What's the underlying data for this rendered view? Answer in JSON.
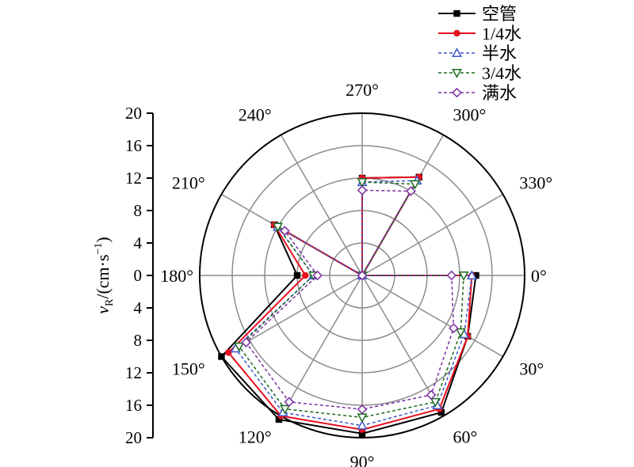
{
  "chart_data": {
    "type": "line",
    "subtype": "polar-radar",
    "ylabel_main": "v",
    "ylabel_sub": "R",
    "ylabel_unit_pre": "/(cm·s",
    "ylabel_unit_sup": "−1",
    "ylabel_unit_post": ")",
    "rlim": [
      0,
      20
    ],
    "r_ticks": [
      "0",
      "4",
      "8",
      "12",
      "16",
      "20"
    ],
    "r_axis_labels": [
      "20",
      "16",
      "12",
      "8",
      "4",
      "0",
      "4",
      "8",
      "12",
      "16",
      "20"
    ],
    "angle_labels": [
      "0°",
      "30°",
      "60°",
      "90°",
      "120°",
      "150°",
      "180°",
      "210°",
      "240°",
      "270°",
      "300°",
      "330°"
    ],
    "angles_deg": [
      0,
      30,
      60,
      90,
      120,
      150,
      180,
      210,
      240,
      270,
      300,
      330
    ],
    "grid": true,
    "legend_position": "top-right",
    "series": [
      {
        "name": "空管",
        "color": "#000000",
        "marker": "square",
        "dash": "solid",
        "values": [
          14.0,
          15.0,
          19.5,
          19.5,
          20.5,
          20.0,
          8.0,
          12.5,
          0,
          12.0,
          14.0,
          0
        ]
      },
      {
        "name": "1/4水",
        "color": "#e8101e",
        "marker": "circle",
        "dash": "solid",
        "values": [
          13.5,
          15.0,
          19.0,
          19.0,
          20.0,
          19.0,
          7.0,
          12.5,
          0,
          12.0,
          14.0,
          0
        ]
      },
      {
        "name": "半水",
        "color": "#3d57c8",
        "marker": "triangle-up",
        "dash": "dashed",
        "values": [
          13.5,
          14.5,
          18.5,
          18.5,
          19.5,
          18.0,
          6.0,
          12.0,
          0,
          11.5,
          13.5,
          0
        ]
      },
      {
        "name": "3/4水",
        "color": "#1e6b1e",
        "marker": "triangle-down",
        "dash": "dashed",
        "values": [
          12.5,
          14.0,
          18.0,
          17.5,
          19.0,
          17.5,
          6.0,
          12.0,
          0,
          11.5,
          13.0,
          0
        ]
      },
      {
        "name": "满水",
        "color": "#7a2fa0",
        "marker": "diamond",
        "dash": "dashed",
        "values": [
          11.0,
          13.0,
          17.0,
          16.5,
          18.0,
          16.5,
          5.5,
          11.0,
          0,
          10.5,
          12.0,
          0
        ]
      }
    ]
  }
}
